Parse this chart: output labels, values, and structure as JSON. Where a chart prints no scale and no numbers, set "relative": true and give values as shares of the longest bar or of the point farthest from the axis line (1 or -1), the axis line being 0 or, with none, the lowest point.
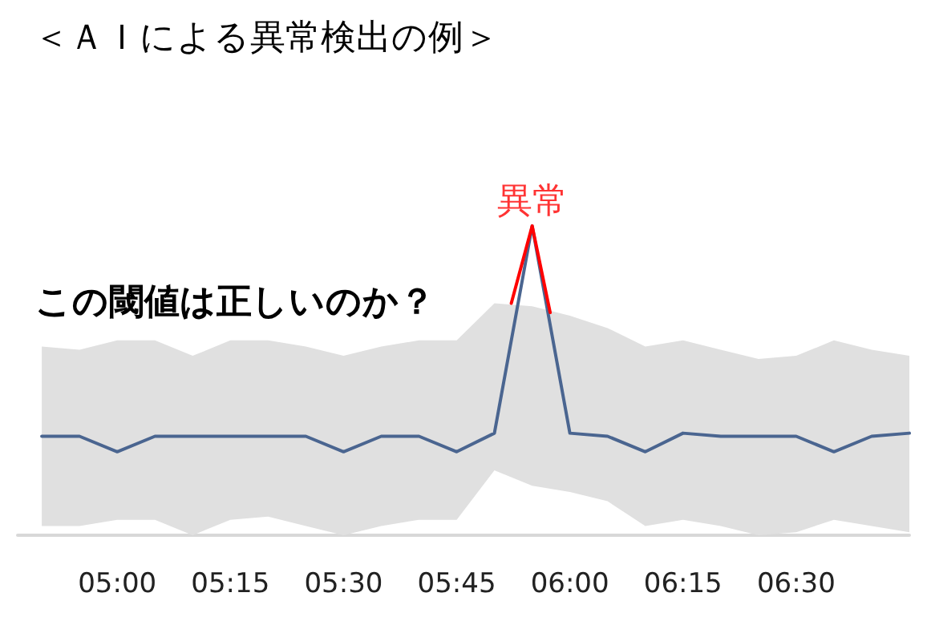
{
  "chart_data": {
    "type": "line",
    "title": "＜ＡＩによる異常検出の例＞",
    "relative": true,
    "grid": false,
    "marker": "none",
    "line_style": "solid",
    "annotations": [
      "この閾値は正しいのか？",
      {
        "text": "異常",
        "x": 5.9167,
        "y": 1
      }
    ],
    "xlim": [
      4.78,
      6.75
    ],
    "xticks": [
      {
        "value": 5,
        "label": "05:00"
      },
      {
        "value": 5.25,
        "label": "05:15"
      },
      {
        "value": 5.5,
        "label": "05:30"
      },
      {
        "value": 5.75,
        "label": "05:45"
      },
      {
        "value": 6,
        "label": "06:00"
      },
      {
        "value": 6.25,
        "label": "06:15"
      },
      {
        "value": 6.5,
        "label": "06:30"
      }
    ],
    "series": [
      {
        "color": "#4a6590",
        "x": [
          4.8333,
          4.9167,
          5,
          5.0833,
          5.1667,
          5.25,
          5.3333,
          5.4167,
          5.5,
          5.5833,
          5.6667,
          5.75,
          5.8333,
          5.9167,
          6,
          6.0833,
          6.1667,
          6.25,
          6.3333,
          6.4167,
          6.5,
          6.5833,
          6.6667,
          6.75
        ],
        "values": [
          0.32,
          0.32,
          0.27,
          0.32,
          0.32,
          0.32,
          0.32,
          0.32,
          0.27,
          0.32,
          0.32,
          0.27,
          0.33,
          1,
          0.33,
          0.32,
          0.27,
          0.33,
          0.32,
          0.32,
          0.32,
          0.27,
          0.32,
          0.33
        ],
        "lower": [
          0.03,
          0.03,
          0.05,
          0.05,
          0,
          0.05,
          0.06,
          0.03,
          0,
          0.03,
          0.05,
          0.05,
          0.21,
          0.16,
          0.14,
          0.11,
          0.03,
          0.05,
          0.03,
          0,
          0.01,
          0.05,
          0.03,
          0.01
        ],
        "upper": [
          0.61,
          0.6,
          0.63,
          0.63,
          0.58,
          0.63,
          0.63,
          0.61,
          0.58,
          0.61,
          0.63,
          0.63,
          0.75,
          0.74,
          0.71,
          0.67,
          0.61,
          0.63,
          0.6,
          0.57,
          0.58,
          0.63,
          0.6,
          0.58
        ]
      },
      {
        "color": "#ff0000",
        "x": [
          5.8706,
          5.9167,
          5.9565
        ],
        "values": [
          0.75,
          1,
          0.72
        ]
      }
    ]
  }
}
